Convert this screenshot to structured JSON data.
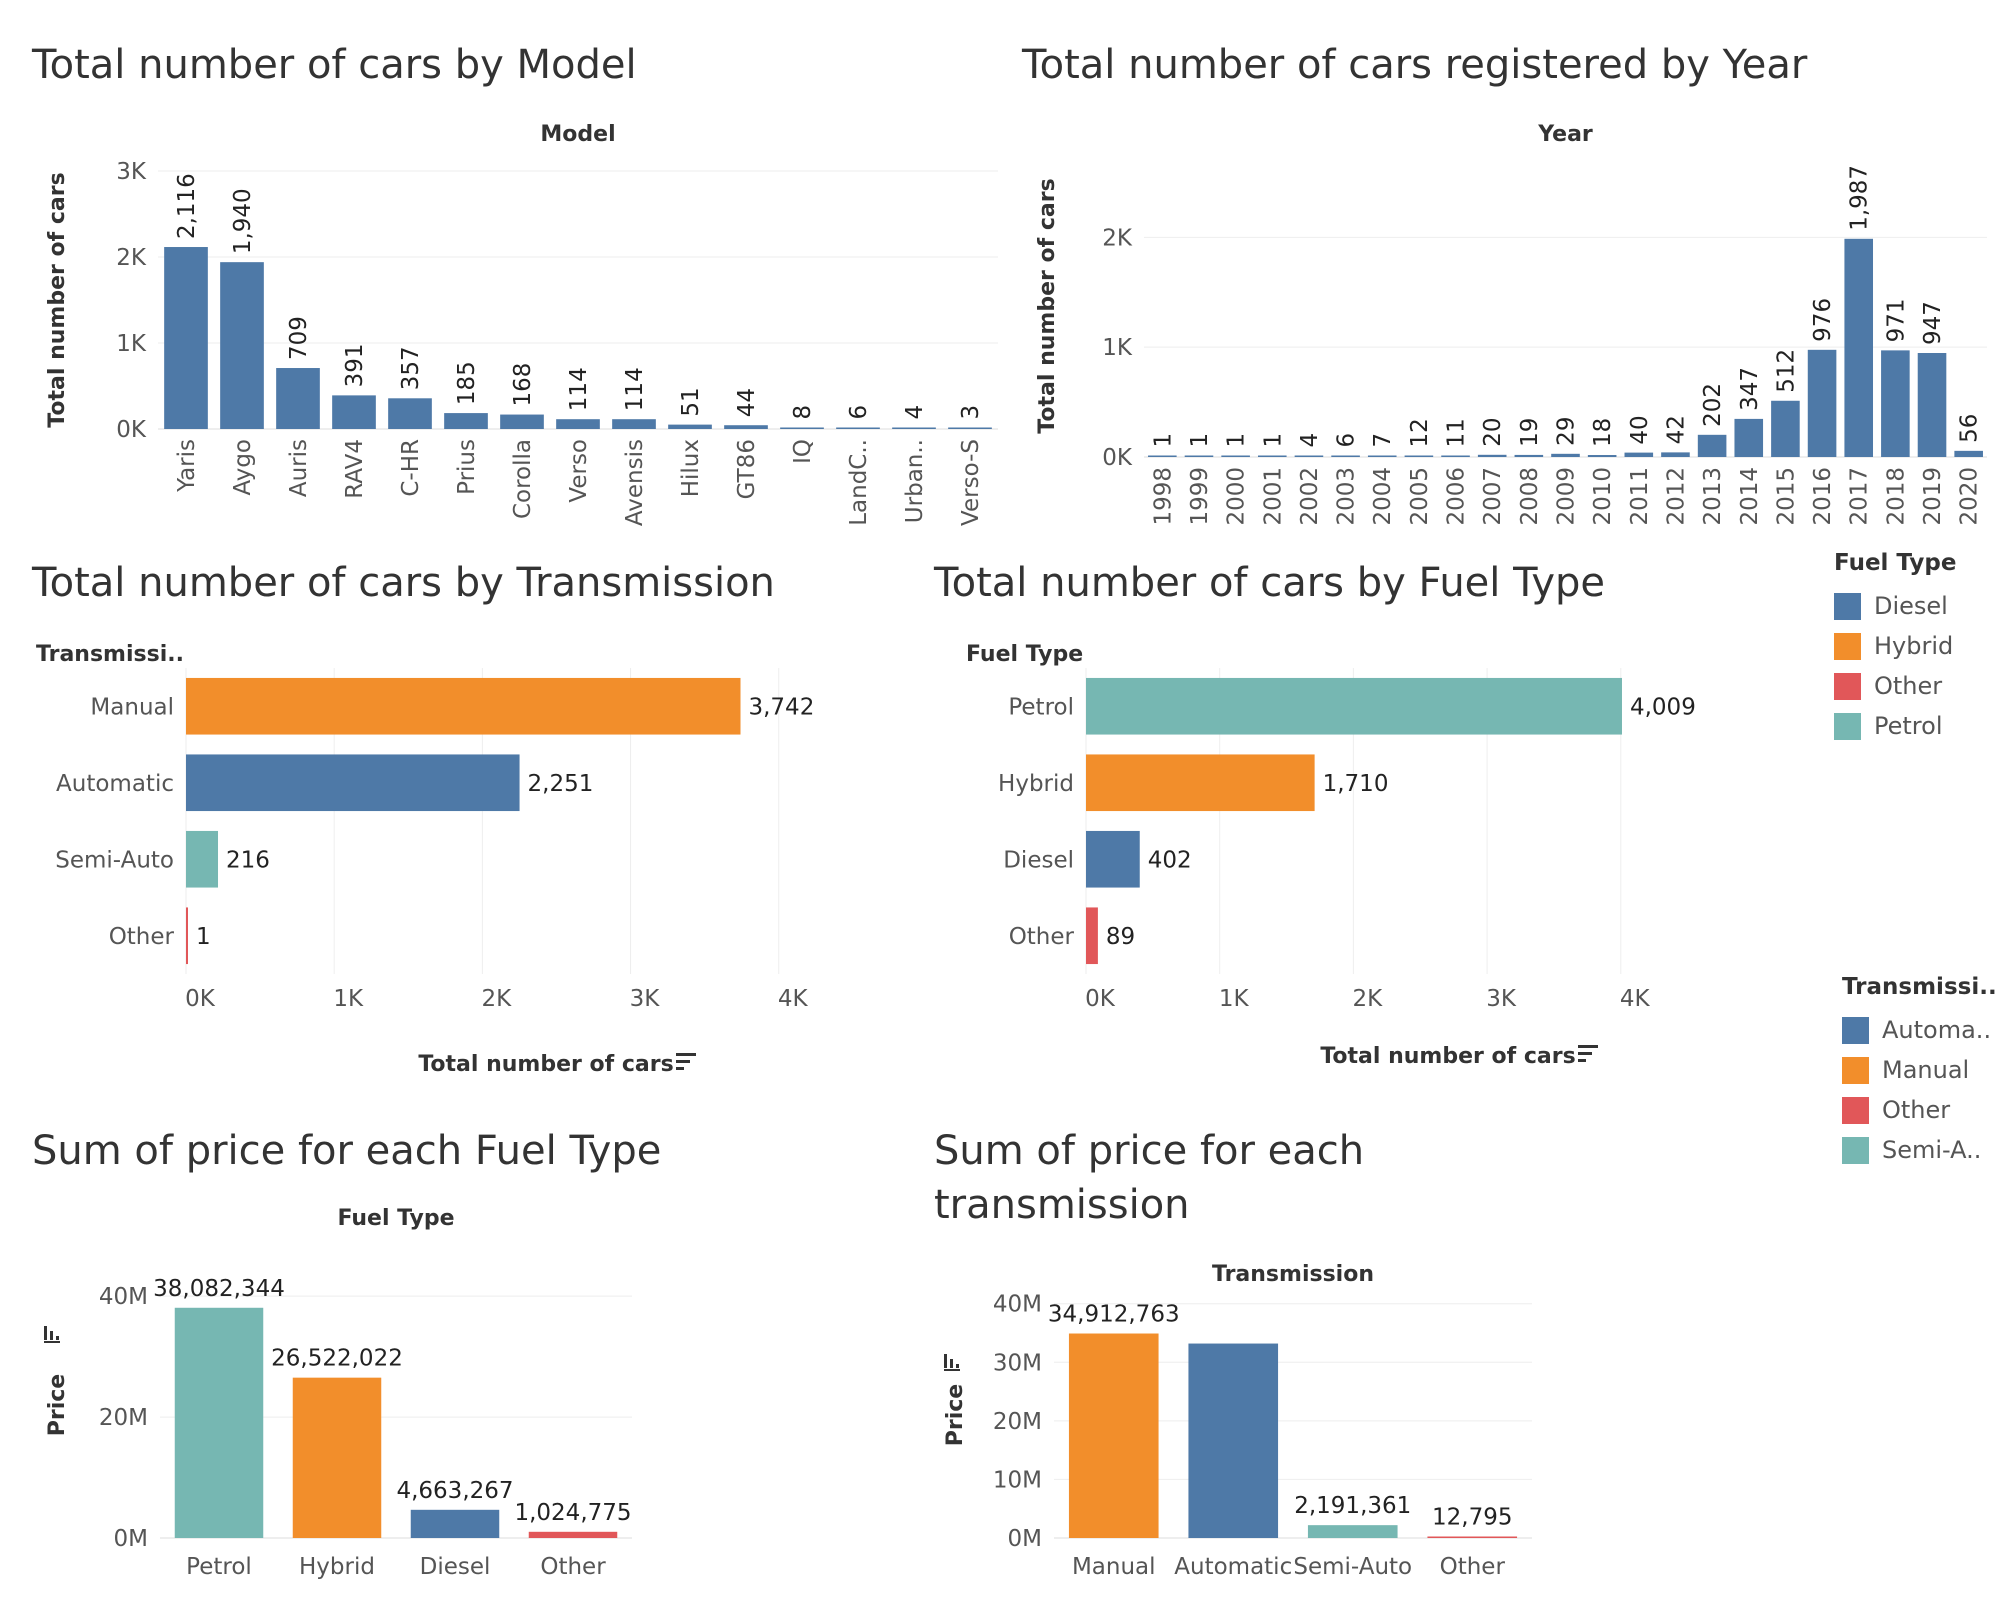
{
  "titles": {
    "model": "Total number of cars by Model",
    "year": "Total number of cars registered by Year",
    "transmission": "Total number of cars by Transmission",
    "fuel": "Total number of cars by Fuel Type",
    "price_fuel": "Sum of price for each Fuel Type",
    "price_trans_line1": "Sum of price for each",
    "price_trans_line2": "transmission"
  },
  "colors": {
    "blue": "#4e79a7",
    "orange": "#f28e2b",
    "red": "#e15759",
    "teal": "#76b7b2",
    "gray_text": "#555555",
    "grid": "#eeeeee"
  },
  "legend_fuel": {
    "title": "Fuel Type",
    "items": [
      {
        "label": "Diesel",
        "color": "#4e79a7"
      },
      {
        "label": "Hybrid",
        "color": "#f28e2b"
      },
      {
        "label": "Other",
        "color": "#e15759"
      },
      {
        "label": "Petrol",
        "color": "#76b7b2"
      }
    ]
  },
  "legend_transmission": {
    "title": "Transmissi..",
    "items": [
      {
        "label": "Automa..",
        "color": "#4e79a7"
      },
      {
        "label": "Manual",
        "color": "#f28e2b"
      },
      {
        "label": "Other",
        "color": "#e15759"
      },
      {
        "label": "Semi-A..",
        "color": "#76b7b2"
      }
    ]
  },
  "chart_data": [
    {
      "id": "model",
      "type": "bar",
      "header": "Model",
      "ylabel": "Total number of cars",
      "yticks": [
        "0K",
        "1K",
        "2K",
        "3K"
      ],
      "ylim": [
        0,
        3000
      ],
      "categories": [
        "Yaris",
        "Aygo",
        "Auris",
        "RAV4",
        "C-HR",
        "Prius",
        "Corolla",
        "Verso",
        "Avensis",
        "Hilux",
        "GT86",
        "IQ",
        "LandC..",
        "Urban..",
        "Verso-S"
      ],
      "values": [
        2116,
        1940,
        709,
        391,
        357,
        185,
        168,
        114,
        114,
        51,
        44,
        8,
        6,
        4,
        3
      ],
      "labels": [
        "2,116",
        "1,940",
        "709",
        "391",
        "357",
        "185",
        "168",
        "114",
        "114",
        "51",
        "44",
        "8",
        "6",
        "4",
        "3"
      ]
    },
    {
      "id": "year",
      "type": "bar",
      "header": "Year",
      "ylabel": "Total number of cars",
      "yticks": [
        "0K",
        "1K",
        "2K"
      ],
      "ylim": [
        0,
        2750
      ],
      "categories": [
        "1998",
        "1999",
        "2000",
        "2001",
        "2002",
        "2003",
        "2004",
        "2005",
        "2006",
        "2007",
        "2008",
        "2009",
        "2010",
        "2011",
        "2012",
        "2013",
        "2014",
        "2015",
        "2016",
        "2017",
        "2018",
        "2019",
        "2020"
      ],
      "values": [
        1,
        1,
        1,
        1,
        4,
        6,
        7,
        12,
        11,
        20,
        19,
        29,
        18,
        40,
        42,
        202,
        347,
        512,
        976,
        1987,
        971,
        947,
        56
      ],
      "labels": [
        "1",
        "1",
        "1",
        "1",
        "4",
        "6",
        "7",
        "12",
        "11",
        "20",
        "19",
        "29",
        "18",
        "40",
        "42",
        "202",
        "347",
        "512",
        "976",
        "1,987",
        "971",
        "947",
        "56"
      ]
    },
    {
      "id": "transmission",
      "type": "bar",
      "orientation": "horizontal",
      "header": "Transmissi..",
      "xlabel": "Total number of cars",
      "xticks": [
        "0K",
        "1K",
        "2K",
        "3K",
        "4K"
      ],
      "xlim": [
        0,
        4400
      ],
      "categories": [
        "Manual",
        "Automatic",
        "Semi-Auto",
        "Other"
      ],
      "values": [
        3742,
        2251,
        216,
        1
      ],
      "labels": [
        "3,742",
        "2,251",
        "216",
        "1"
      ],
      "colors": [
        "#f28e2b",
        "#4e79a7",
        "#76b7b2",
        "#e15759"
      ]
    },
    {
      "id": "fuel",
      "type": "bar",
      "orientation": "horizontal",
      "header": "Fuel Type",
      "xlabel": "Total number of cars",
      "xticks": [
        "0K",
        "1K",
        "2K",
        "3K",
        "4K"
      ],
      "xlim": [
        0,
        4600
      ],
      "categories": [
        "Petrol",
        "Hybrid",
        "Diesel",
        "Other"
      ],
      "values": [
        4009,
        1710,
        402,
        89
      ],
      "labels": [
        "4,009",
        "1,710",
        "402",
        "89"
      ],
      "colors": [
        "#76b7b2",
        "#f28e2b",
        "#4e79a7",
        "#e15759"
      ]
    },
    {
      "id": "price_fuel",
      "type": "bar",
      "header": "Fuel Type",
      "ylabel": "Price",
      "yticks": [
        "0M",
        "20M",
        "40M"
      ],
      "ylim": [
        0,
        44000000
      ],
      "categories": [
        "Petrol",
        "Hybrid",
        "Diesel",
        "Other"
      ],
      "values": [
        38082344,
        26522022,
        4663267,
        1024775
      ],
      "labels": [
        "38,082,344",
        "26,522,022",
        "4,663,267",
        "1,024,775"
      ],
      "colors": [
        "#76b7b2",
        "#f28e2b",
        "#4e79a7",
        "#e15759"
      ]
    },
    {
      "id": "price_trans",
      "type": "bar",
      "header": "Transmission",
      "ylabel": "Price",
      "yticks": [
        "0M",
        "10M",
        "20M",
        "30M",
        "40M"
      ],
      "ylim": [
        0,
        42000000
      ],
      "categories": [
        "Manual",
        "Automatic",
        "Semi-Auto",
        "Other"
      ],
      "values": [
        34912763,
        33200000,
        2191361,
        12795
      ],
      "labels": [
        "34,912,763",
        "",
        "2,191,361",
        "12,795"
      ],
      "colors": [
        "#f28e2b",
        "#4e79a7",
        "#76b7b2",
        "#e15759"
      ]
    }
  ]
}
